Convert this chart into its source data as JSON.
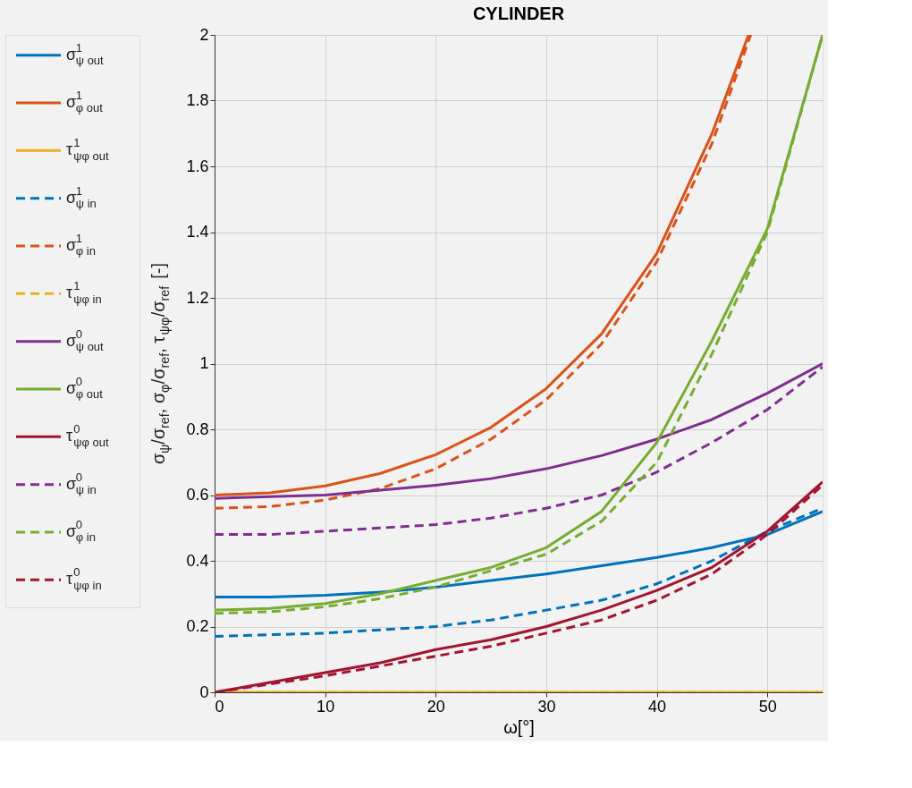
{
  "chart_data": {
    "type": "line",
    "title": "CYLINDER",
    "xlabel": "ω[°]",
    "ylabel": "σ$_{ψ}$/σ$_{ref}$, σ$_{φ}$/σ$_{ref}$, τ$_{ψφ}$/σ$_{ref}$ [-]",
    "x": [
      0,
      5,
      10,
      15,
      20,
      25,
      30,
      35,
      40,
      45,
      50,
      55
    ],
    "xlim": [
      0,
      55
    ],
    "xticks": [
      0,
      10,
      20,
      30,
      40,
      50
    ],
    "ylim": [
      0,
      2
    ],
    "yticks": [
      0,
      0.2,
      0.4,
      0.6,
      0.8,
      1,
      1.2,
      1.4,
      1.6,
      1.8,
      2
    ],
    "grid": true,
    "legend": "left",
    "marker": "none",
    "series": [
      {
        "name": "σ$^{1}$$_{ψ out}$",
        "color": "#0072bd",
        "line_style": "solid",
        "values": [
          0.29,
          0.29,
          0.295,
          0.305,
          0.32,
          0.34,
          0.36,
          0.385,
          0.41,
          0.44,
          0.48,
          0.55
        ]
      },
      {
        "name": "σ$^{1}$$_{φ out}$",
        "color": "#d95319",
        "line_style": "solid",
        "x": [
          0,
          5,
          10,
          15,
          20,
          25,
          30,
          35,
          40,
          45,
          48.3
        ],
        "values": [
          0.6,
          0.607,
          0.628,
          0.666,
          0.723,
          0.806,
          0.924,
          1.09,
          1.335,
          1.7,
          2.0
        ]
      },
      {
        "name": "τ$^{1}$$_{ψφ out}$",
        "color": "#edb120",
        "line_style": "solid",
        "values": [
          0,
          0,
          0,
          0,
          0,
          0,
          0,
          0,
          0,
          0,
          0,
          0
        ]
      },
      {
        "name": "σ$^{1}$$_{ψ in}$",
        "color": "#0072bd",
        "line_style": "dashed",
        "values": [
          0.17,
          0.175,
          0.18,
          0.19,
          0.2,
          0.22,
          0.25,
          0.28,
          0.33,
          0.4,
          0.49,
          0.56
        ]
      },
      {
        "name": "σ$^{1}$$_{φ in}$",
        "color": "#d95319",
        "line_style": "dashed",
        "x": [
          0,
          5,
          10,
          15,
          20,
          25,
          30,
          35,
          40,
          45,
          48.5
        ],
        "values": [
          0.56,
          0.565,
          0.585,
          0.62,
          0.68,
          0.77,
          0.89,
          1.06,
          1.31,
          1.67,
          2.0
        ]
      },
      {
        "name": "τ$^{1}$$_{ψφ in}$",
        "color": "#edb120",
        "line_style": "dashed",
        "values": [
          0,
          0,
          0,
          0,
          0,
          0,
          0,
          0,
          0,
          0,
          0,
          0
        ]
      },
      {
        "name": "σ$^{0}$$_{ψ out}$",
        "color": "#7e2f8e",
        "line_style": "solid",
        "values": [
          0.59,
          0.595,
          0.6,
          0.615,
          0.63,
          0.65,
          0.68,
          0.72,
          0.77,
          0.83,
          0.91,
          1.0
        ]
      },
      {
        "name": "σ$^{0}$$_{φ out}$",
        "color": "#77ac30",
        "line_style": "solid",
        "values": [
          0.25,
          0.255,
          0.27,
          0.3,
          0.34,
          0.38,
          0.44,
          0.55,
          0.76,
          1.07,
          1.41,
          2.0
        ]
      },
      {
        "name": "τ$^{0}$$_{ψφ out}$",
        "color": "#a2142f",
        "line_style": "solid",
        "values": [
          0,
          0.03,
          0.06,
          0.09,
          0.13,
          0.16,
          0.2,
          0.25,
          0.31,
          0.38,
          0.49,
          0.64
        ]
      },
      {
        "name": "σ$^{0}$$_{ψ in}$",
        "color": "#7e2f8e",
        "line_style": "dashed",
        "values": [
          0.48,
          0.48,
          0.49,
          0.5,
          0.51,
          0.53,
          0.56,
          0.6,
          0.67,
          0.76,
          0.86,
          0.99
        ]
      },
      {
        "name": "σ$^{0}$$_{φ in}$",
        "color": "#77ac30",
        "line_style": "dashed",
        "values": [
          0.24,
          0.245,
          0.26,
          0.285,
          0.32,
          0.37,
          0.42,
          0.52,
          0.7,
          1.03,
          1.4,
          2.0
        ]
      },
      {
        "name": "τ$^{0}$$_{ψφ in}$",
        "color": "#a2142f",
        "line_style": "dashed",
        "values": [
          0,
          0.025,
          0.05,
          0.08,
          0.11,
          0.14,
          0.18,
          0.22,
          0.28,
          0.36,
          0.48,
          0.63
        ]
      }
    ]
  }
}
